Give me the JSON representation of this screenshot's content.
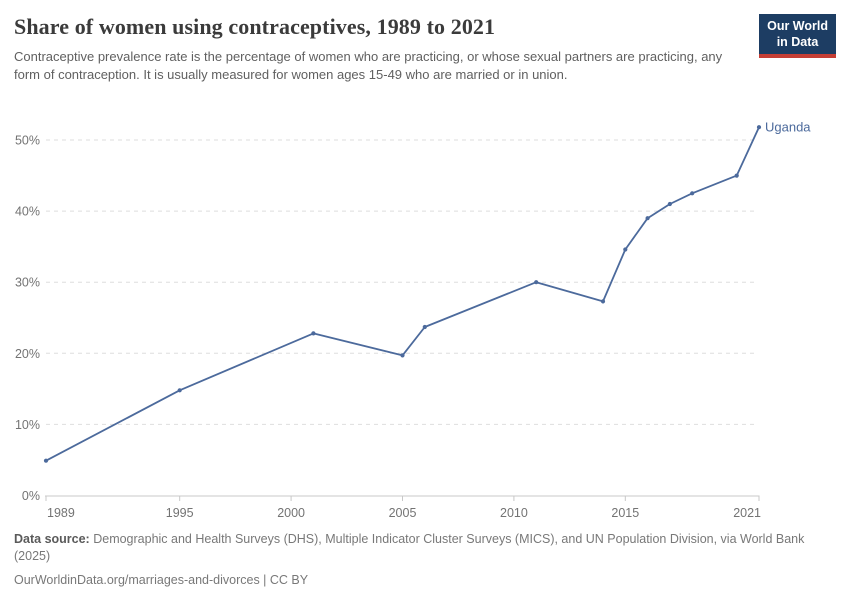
{
  "header": {
    "title": "Share of women using contraceptives, 1989 to 2021",
    "subtitle": "Contraceptive prevalence rate is the percentage of women who are practicing, or whose sexual partners are practicing, any form of contraception. It is usually measured for women ages 15-49 who are married or in union.",
    "logo": {
      "line1": "Our World",
      "line2": "in Data",
      "bg_color": "#1d3d63",
      "accent_color": "#c53e35"
    }
  },
  "chart_data": {
    "type": "line",
    "title": "Share of women using contraceptives, 1989 to 2021",
    "xlabel": "",
    "ylabel": "",
    "xlim": [
      1989,
      2021
    ],
    "ylim": [
      0,
      52
    ],
    "x_ticks": [
      1989,
      1995,
      2000,
      2005,
      2010,
      2015,
      2021
    ],
    "y_ticks": [
      0,
      10,
      20,
      30,
      40,
      50
    ],
    "y_tick_suffix": "%",
    "grid": "horizontal-dashed",
    "legend_position": "end-of-line-label",
    "series": [
      {
        "name": "Uganda",
        "color": "#4c6a9c",
        "x": [
          1989,
          1995,
          2001,
          2005,
          2006,
          2011,
          2014,
          2015,
          2016,
          2017,
          2018,
          2020,
          2021
        ],
        "values": [
          4.9,
          14.8,
          22.8,
          19.7,
          23.7,
          30.0,
          27.3,
          34.6,
          39.0,
          41.0,
          42.5,
          45.0,
          51.8
        ]
      }
    ],
    "colors": {
      "gridline": "#dedede",
      "axis": "#c8c8c8",
      "tick_label": "#737373"
    }
  },
  "footer": {
    "source_label": "Data source:",
    "source_text": "Demographic and Health Surveys (DHS), Multiple Indicator Cluster Surveys (MICS), and UN Population Division, via World Bank (2025)",
    "link_line": "OurWorldinData.org/marriages-and-divorces | CC BY"
  }
}
